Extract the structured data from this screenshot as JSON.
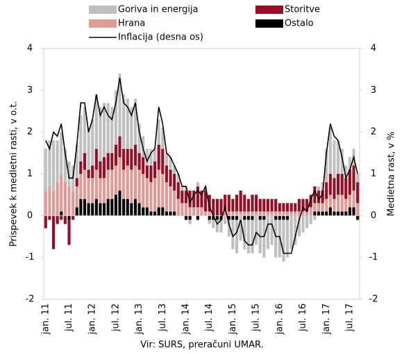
{
  "chart_data": {
    "type": "bar",
    "stacked": true,
    "y_label": "Prispevek k medletni rasti, v o.t.",
    "y2_label": "Medletna rast, v %",
    "source": "Vir: SURS, preračuni UMAR.",
    "categories": [
      "jan. 11",
      null,
      null,
      null,
      null,
      null,
      "jul. 11",
      null,
      null,
      null,
      null,
      null,
      "jan. 12",
      null,
      null,
      null,
      null,
      null,
      "jul. 12",
      null,
      null,
      null,
      null,
      null,
      "jan. 13",
      null,
      null,
      null,
      null,
      null,
      "jul. 13",
      null,
      null,
      null,
      null,
      null,
      "jan. 14",
      null,
      null,
      null,
      null,
      null,
      "jul. 14",
      null,
      null,
      null,
      null,
      null,
      "jan. 15",
      null,
      null,
      null,
      null,
      null,
      "jul. 15",
      null,
      null,
      null,
      null,
      null,
      "jan. 16",
      null,
      null,
      null,
      null,
      null,
      "jul. 16",
      null,
      null,
      null,
      null,
      null,
      "jan. 17",
      null,
      null,
      null,
      null,
      null,
      "jul. 17",
      null,
      null
    ],
    "series": [
      {
        "name": "Goriva in energija",
        "color": "#bfbfbf",
        "values": [
          1.0,
          1.1,
          1.2,
          1.0,
          1.0,
          0.8,
          0.6,
          0.6,
          0.8,
          1.1,
          1.1,
          1.0,
          1.1,
          1.3,
          1.3,
          1.3,
          1.2,
          1.1,
          1.3,
          1.5,
          1.3,
          1.2,
          1.0,
          1.1,
          0.7,
          0.5,
          0.4,
          0.4,
          0.3,
          0.6,
          0.5,
          0.3,
          0.3,
          0.2,
          0.2,
          0.1,
          0.1,
          -0.1,
          0.0,
          0.1,
          0.0,
          0.1,
          -0.1,
          -0.2,
          -0.3,
          -0.3,
          -0.2,
          -0.4,
          -0.7,
          -0.8,
          -0.6,
          -0.7,
          -0.8,
          -0.8,
          -0.7,
          -0.8,
          -0.9,
          -0.8,
          -0.7,
          -0.9,
          -0.9,
          -1.0,
          -0.9,
          -0.8,
          -0.7,
          -0.5,
          -0.4,
          -0.3,
          -0.2,
          -0.1,
          0.1,
          0.2,
          0.8,
          1.1,
          0.9,
          0.8,
          0.6,
          0.3,
          0.3,
          0.4,
          0.2
        ]
      },
      {
        "name": "Storitve",
        "color": "#9b0d24",
        "values": [
          -0.3,
          -0.1,
          -0.8,
          -0.2,
          -0.1,
          -0.2,
          -0.6,
          -0.1,
          0.2,
          0.3,
          0.4,
          0.2,
          0.3,
          0.5,
          0.4,
          0.5,
          0.4,
          0.4,
          0.5,
          0.5,
          0.5,
          0.4,
          0.5,
          0.5,
          0.4,
          0.4,
          0.3,
          0.4,
          0.4,
          0.6,
          0.6,
          0.4,
          0.4,
          0.4,
          0.4,
          0.3,
          0.3,
          0.4,
          0.4,
          0.5,
          0.4,
          0.5,
          0.4,
          0.4,
          0.4,
          0.4,
          0.4,
          0.4,
          0.3,
          0.4,
          0.5,
          0.4,
          0.3,
          0.4,
          0.4,
          0.3,
          0.3,
          0.3,
          0.3,
          0.3,
          0.2,
          0.2,
          0.2,
          0.2,
          0.2,
          0.3,
          0.3,
          0.3,
          0.3,
          0.4,
          0.3,
          0.3,
          0.4,
          0.5,
          0.5,
          0.5,
          0.5,
          0.5,
          0.6,
          0.6,
          0.5
        ]
      },
      {
        "name": "Hrana",
        "color": "#e09b95",
        "values": [
          0.6,
          0.7,
          0.6,
          0.8,
          0.9,
          0.8,
          0.7,
          0.6,
          0.5,
          0.6,
          0.7,
          0.6,
          0.6,
          0.7,
          0.6,
          0.6,
          0.7,
          0.7,
          0.7,
          0.8,
          0.7,
          0.8,
          0.8,
          0.8,
          0.8,
          0.8,
          0.7,
          0.7,
          0.8,
          0.9,
          0.8,
          0.7,
          0.6,
          0.5,
          0.4,
          0.3,
          0.3,
          0.2,
          0.2,
          0.2,
          0.2,
          0.1,
          0.1,
          0.0,
          0.0,
          0.0,
          0.1,
          0.1,
          0.1,
          0.1,
          0.1,
          0.1,
          0.1,
          0.1,
          0.1,
          0.1,
          0.1,
          0.1,
          0.1,
          0.1,
          0.1,
          0.1,
          0.1,
          0.1,
          0.1,
          0.1,
          0.1,
          0.1,
          0.2,
          0.2,
          0.2,
          0.2,
          0.3,
          0.3,
          0.3,
          0.4,
          0.4,
          0.3,
          0.3,
          0.4,
          0.3
        ]
      },
      {
        "name": "Ostalo",
        "color": "#000000",
        "values": [
          0.0,
          0.0,
          0.0,
          0.0,
          0.1,
          0.0,
          -0.1,
          0.0,
          0.2,
          0.4,
          0.4,
          0.3,
          0.3,
          0.4,
          0.3,
          0.3,
          0.4,
          0.4,
          0.5,
          0.6,
          0.4,
          0.4,
          0.3,
          0.4,
          0.3,
          0.2,
          0.2,
          0.1,
          0.1,
          0.2,
          0.2,
          0.1,
          0.1,
          0.1,
          0.0,
          0.0,
          -0.1,
          -0.1,
          0.0,
          -0.1,
          0.0,
          0.0,
          -0.1,
          -0.1,
          -0.1,
          -0.1,
          0.0,
          -0.1,
          -0.1,
          -0.1,
          0.0,
          -0.1,
          -0.1,
          -0.1,
          0.0,
          -0.1,
          -0.1,
          0.0,
          0.0,
          -0.1,
          -0.1,
          -0.1,
          -0.1,
          0.0,
          0.0,
          0.0,
          0.0,
          0.0,
          0.0,
          0.1,
          0.1,
          0.1,
          0.1,
          0.2,
          0.1,
          0.1,
          0.1,
          0.1,
          0.2,
          0.2,
          -0.1
        ]
      },
      {
        "name": "Inflacija (desna os)",
        "color": "#000000",
        "type": "line",
        "axis": "y2",
        "values": [
          1.8,
          1.6,
          2.0,
          1.9,
          2.2,
          1.5,
          0.9,
          0.9,
          1.7,
          2.7,
          2.7,
          2.0,
          2.3,
          2.9,
          2.4,
          2.6,
          2.4,
          2.3,
          2.7,
          3.3,
          2.7,
          2.6,
          2.4,
          2.7,
          2.0,
          1.6,
          1.3,
          1.5,
          1.6,
          2.6,
          2.2,
          1.5,
          1.4,
          1.2,
          1.0,
          0.7,
          0.7,
          0.3,
          0.5,
          0.6,
          0.5,
          0.7,
          0.2,
          0.0,
          -0.2,
          -0.1,
          0.2,
          -0.2,
          -0.5,
          -0.4,
          -0.1,
          -0.6,
          -0.7,
          -0.7,
          -0.4,
          -0.5,
          -0.5,
          -0.2,
          -0.2,
          -0.5,
          -0.5,
          -0.9,
          -0.9,
          -0.9,
          -0.5,
          -0.1,
          0.2,
          0.1,
          0.4,
          0.6,
          0.4,
          0.5,
          1.5,
          2.2,
          1.9,
          1.8,
          1.4,
          0.9,
          1.1,
          1.4,
          1.0
        ]
      }
    ],
    "ylim": [
      -2,
      4
    ],
    "yticks": [
      -2,
      -1,
      0,
      1,
      2,
      3,
      4
    ],
    "y2lim": [
      -2,
      4
    ],
    "y2ticks": [
      -2,
      -1,
      0,
      1,
      2,
      3,
      4
    ],
    "grid": false
  }
}
